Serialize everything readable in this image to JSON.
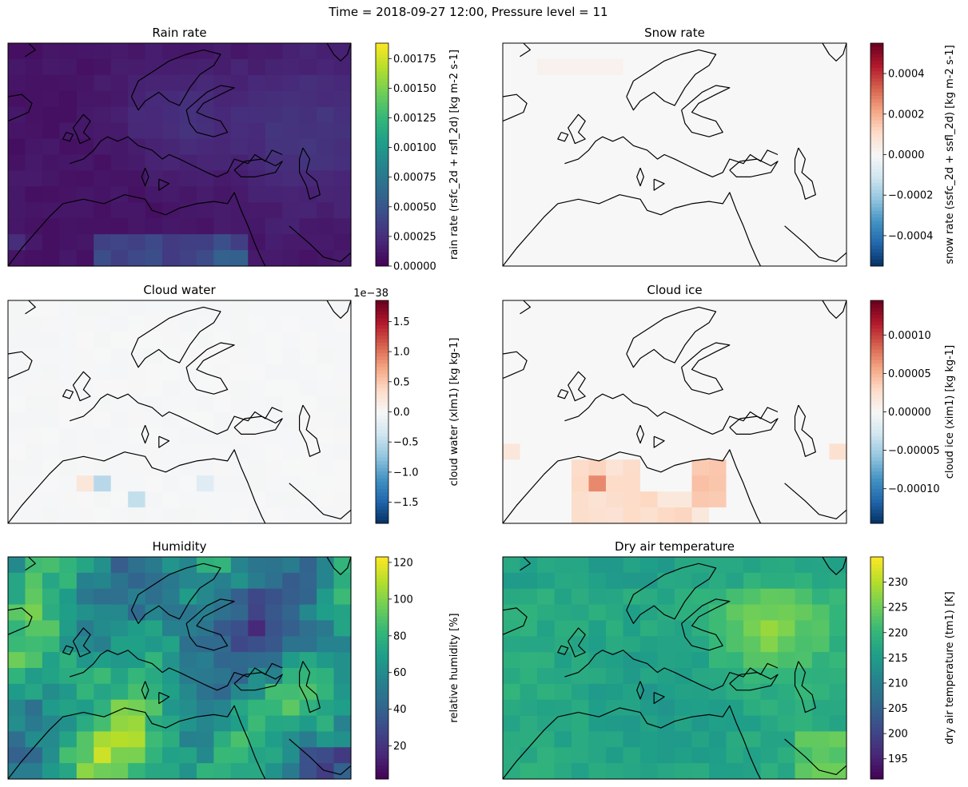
{
  "suptitle": "Time = 2018-09-27 12:00, Pressure level = 11",
  "colormaps": {
    "viridis": [
      "#440154",
      "#482878",
      "#3e4989",
      "#31688e",
      "#26828e",
      "#1f9e89",
      "#35b779",
      "#6ece58",
      "#b5de2b",
      "#fde725"
    ],
    "rdbu_r": [
      "#053061",
      "#2166ac",
      "#4393c3",
      "#92c5de",
      "#d1e5f0",
      "#f7f7f7",
      "#fddbc7",
      "#f4a582",
      "#d6604d",
      "#b2182b",
      "#67001f"
    ]
  },
  "coastline_color": "#000000",
  "chart_data": [
    {
      "type": "heatmap",
      "title": "Rain rate",
      "colorbar_label": "rain rate (rsfc_2d + rsfl_2d) [kg m-2 s-1]",
      "colormap": "viridis",
      "vmin": 0.0,
      "vmax": 0.00188,
      "colorbar_ticks": [
        "0.00000",
        "0.00025",
        "0.00050",
        "0.00075",
        "0.00100",
        "0.00125",
        "0.00150",
        "0.00175"
      ],
      "colorbar_tick_values": [
        0.0,
        0.00025,
        0.0005,
        0.00075,
        0.001,
        0.00125,
        0.0015,
        0.00175
      ],
      "offset_text": "",
      "grid": "none"
    },
    {
      "type": "heatmap",
      "title": "Snow rate",
      "colorbar_label": "snow rate (ssfc_2d + ssfl_2d) [kg m-2 s-1]",
      "colormap": "rdbu_r",
      "vmin": -0.00055,
      "vmax": 0.00055,
      "colorbar_ticks": [
        "−0.0004",
        "−0.0002",
        "0.0000",
        "0.0002",
        "0.0004"
      ],
      "colorbar_tick_values": [
        -0.0004,
        -0.0002,
        0.0,
        0.0002,
        0.0004
      ],
      "offset_text": "",
      "grid": "none"
    },
    {
      "type": "heatmap",
      "title": "Cloud water",
      "colorbar_label": "cloud water (xlm1) [kg kg-1]",
      "colormap": "rdbu_r",
      "vmin": -1.85,
      "vmax": 1.85,
      "colorbar_ticks": [
        "−1.5",
        "−1.0",
        "−0.5",
        "0.0",
        "0.5",
        "1.0",
        "1.5"
      ],
      "colorbar_tick_values": [
        -1.5,
        -1.0,
        -0.5,
        0.0,
        0.5,
        1.0,
        1.5
      ],
      "offset_text": "1e−38",
      "grid": "none"
    },
    {
      "type": "heatmap",
      "title": "Cloud ice",
      "colorbar_label": "cloud ice (xim1) [kg kg-1]",
      "colormap": "rdbu_r",
      "vmin": -0.000145,
      "vmax": 0.000145,
      "colorbar_ticks": [
        "−0.00010",
        "−0.00005",
        "0.00000",
        "0.00005",
        "0.00010"
      ],
      "colorbar_tick_values": [
        -0.0001,
        -5e-05,
        0.0,
        5e-05,
        0.0001
      ],
      "offset_text": "",
      "grid": "none"
    },
    {
      "type": "heatmap",
      "title": "Humidity",
      "colorbar_label": "relative humidity [%]",
      "colormap": "viridis",
      "vmin": 2,
      "vmax": 123,
      "colorbar_ticks": [
        "20",
        "40",
        "60",
        "80",
        "100",
        "120"
      ],
      "colorbar_tick_values": [
        20,
        40,
        60,
        80,
        100,
        120
      ],
      "offset_text": "",
      "grid": "none"
    },
    {
      "type": "heatmap",
      "title": "Dry air temperature",
      "colorbar_label": "dry air temperature (tm1) [K]",
      "colormap": "viridis",
      "vmin": 191,
      "vmax": 235,
      "colorbar_ticks": [
        "195",
        "200",
        "205",
        "210",
        "215",
        "220",
        "225",
        "230"
      ],
      "colorbar_tick_values": [
        195,
        200,
        205,
        210,
        215,
        220,
        225,
        230
      ],
      "offset_text": "",
      "grid": "none"
    }
  ]
}
